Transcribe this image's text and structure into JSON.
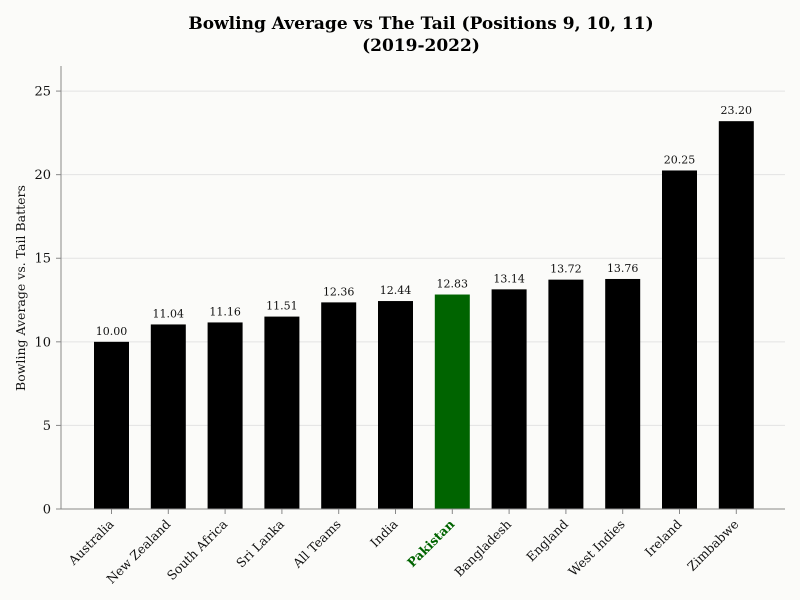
{
  "chart_data": {
    "type": "bar",
    "title_line1": "Bowling Average vs The Tail (Positions 9, 10, 11)",
    "title_line2": "(2019-2022)",
    "xlabel": "",
    "ylabel": "Bowling Average vs. Tail Batters",
    "ylim": [
      0,
      26.5
    ],
    "yticks": [
      0,
      5,
      10,
      15,
      20,
      25
    ],
    "grid": "horizontal",
    "categories": [
      "Australia",
      "New Zealand",
      "South Africa",
      "Sri Lanka",
      "All Teams",
      "India",
      "Pakistan",
      "Bangladesh",
      "England",
      "West Indies",
      "Ireland",
      "Zimbabwe"
    ],
    "values": [
      10.0,
      11.04,
      11.16,
      11.51,
      12.36,
      12.44,
      12.83,
      13.14,
      13.72,
      13.76,
      20.25,
      23.2
    ],
    "value_labels": [
      "10.00",
      "11.04",
      "11.16",
      "11.51",
      "12.36",
      "12.44",
      "12.83",
      "13.14",
      "13.72",
      "13.76",
      "20.25",
      "23.20"
    ],
    "highlight": "Pakistan",
    "colors": {
      "bar": "#000000",
      "highlight": "#006400",
      "grid": "#e3e3e3",
      "axis": "#888888",
      "background": "#fbfbf9"
    }
  }
}
